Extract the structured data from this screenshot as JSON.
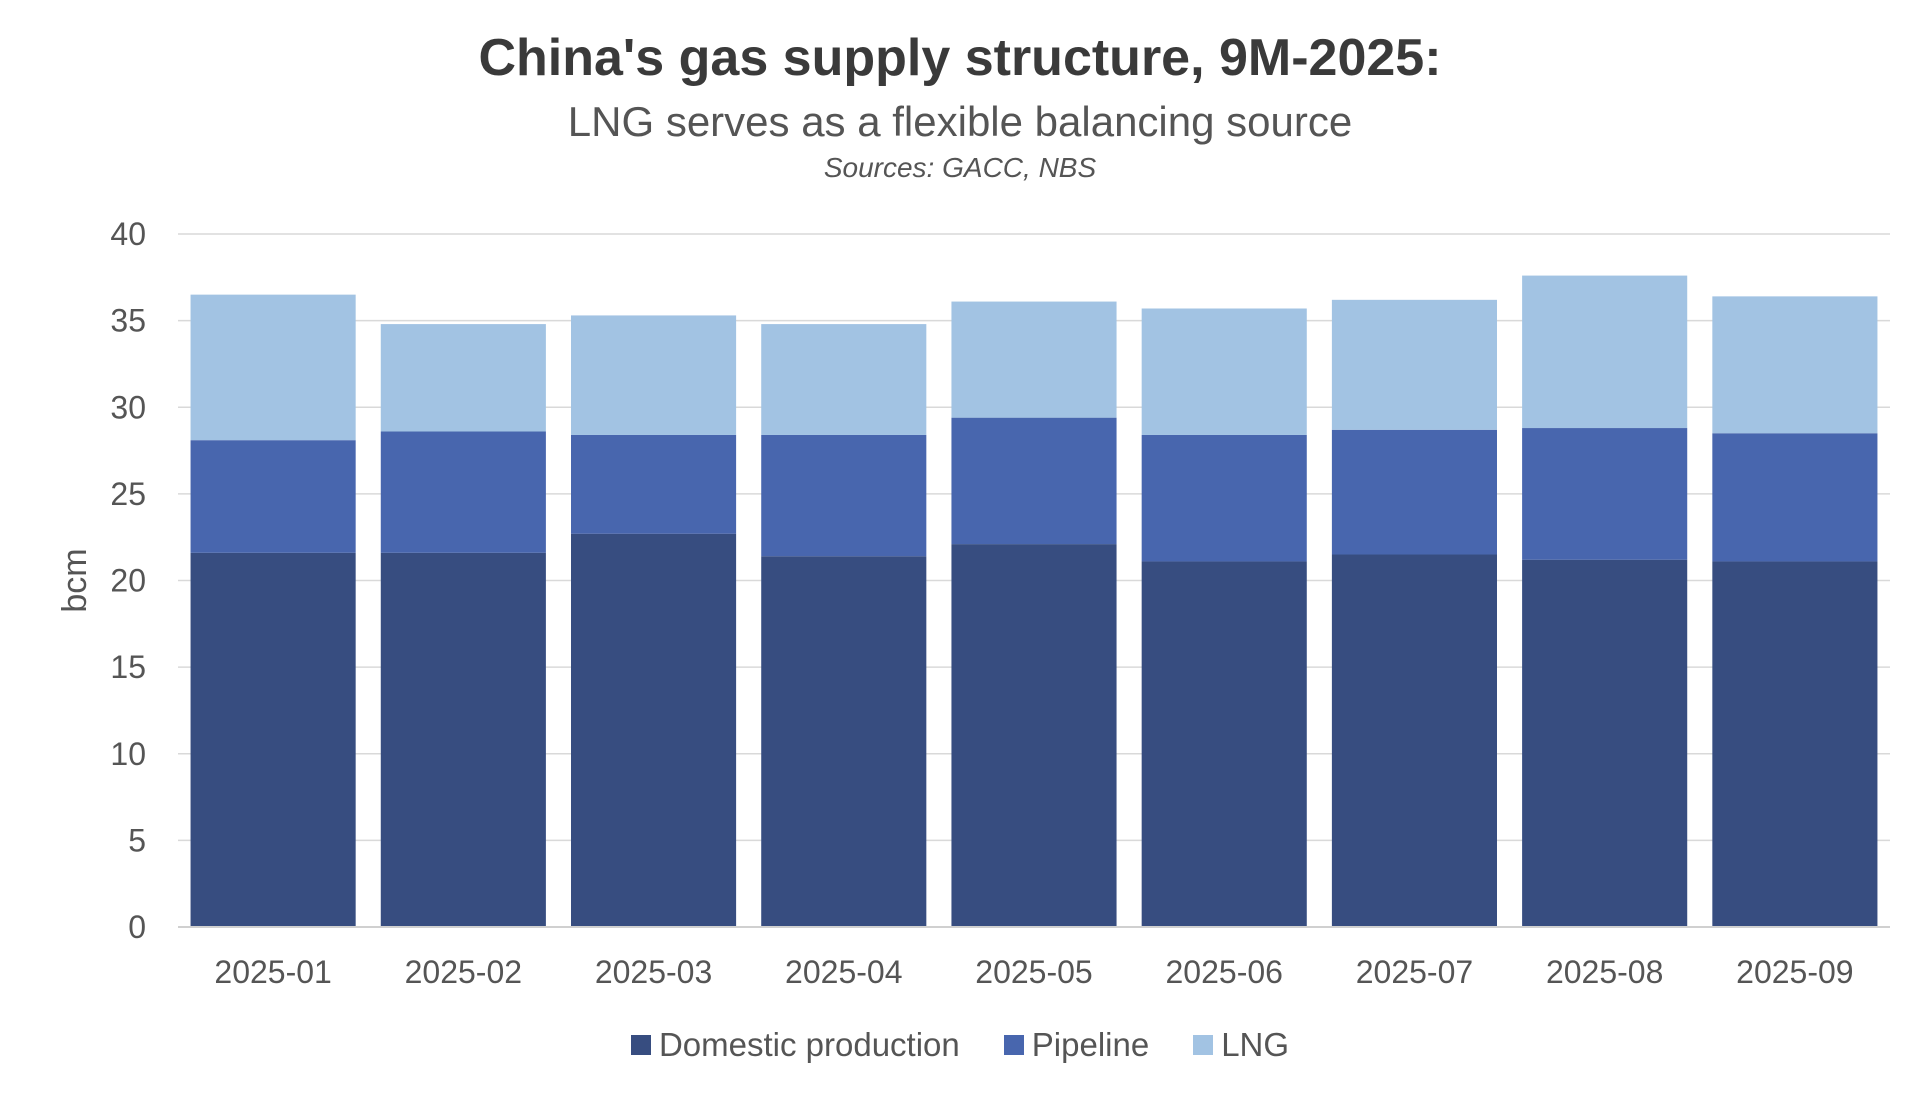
{
  "chart_data": {
    "type": "bar",
    "stacked": true,
    "title": "China's gas supply structure, 9M-2025:",
    "subtitle": "LNG serves as a flexible balancing source",
    "source_note": "Sources: GACC, NBS",
    "ylabel": "bcm",
    "ylim": [
      0,
      40
    ],
    "yticks": [
      "0",
      "5",
      "10",
      "15",
      "20",
      "25",
      "30",
      "35",
      "40"
    ],
    "grid": true,
    "legend_position": "bottom",
    "categories": [
      "2025-01",
      "2025-02",
      "2025-03",
      "2025-04",
      "2025-05",
      "2025-06",
      "2025-07",
      "2025-08",
      "2025-09"
    ],
    "series": [
      {
        "name": "Domestic production",
        "color": "#374d80",
        "values": [
          21.6,
          21.6,
          22.7,
          21.4,
          22.1,
          21.1,
          21.5,
          21.2,
          21.1
        ]
      },
      {
        "name": "Pipeline",
        "color": "#4866ae",
        "values": [
          6.5,
          7.0,
          5.7,
          7.0,
          7.3,
          7.3,
          7.2,
          7.6,
          7.4
        ]
      },
      {
        "name": "LNG",
        "color": "#a2c3e3",
        "values": [
          8.4,
          6.2,
          6.9,
          6.4,
          6.7,
          7.3,
          7.5,
          8.8,
          7.9
        ]
      }
    ]
  }
}
